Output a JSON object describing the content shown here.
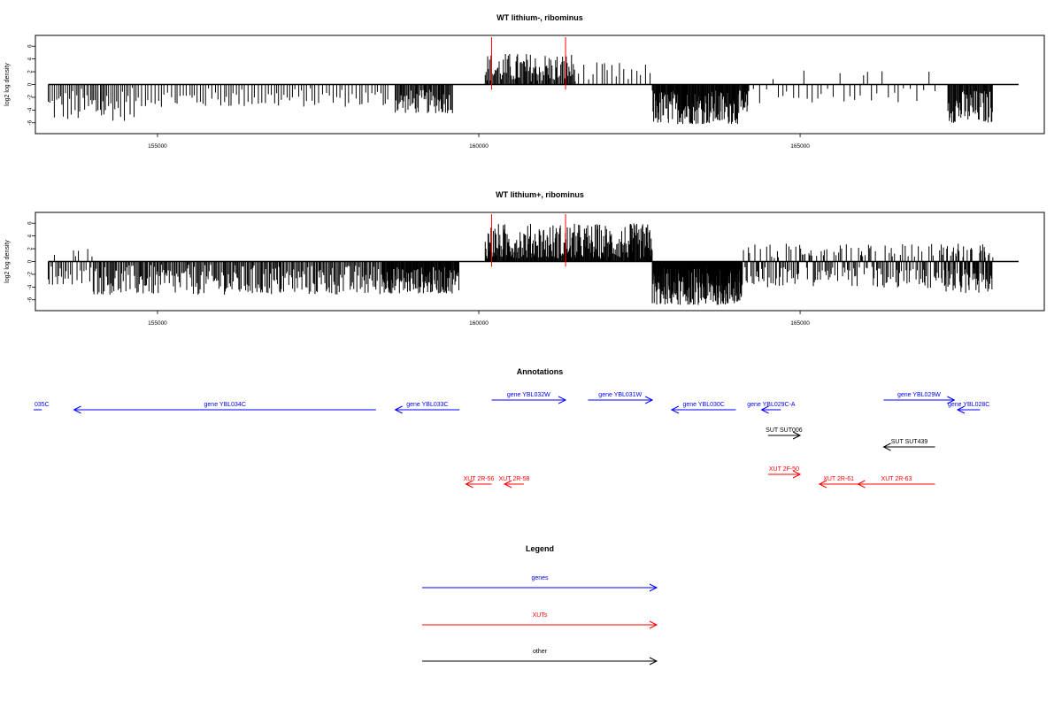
{
  "chart_data": [
    {
      "type": "bar",
      "title": "WT lithium-, ribominus",
      "ylabel": "log2 log density",
      "xlabel": "",
      "xlim": [
        153100,
        168800
      ],
      "ylim": [
        -7,
        7
      ],
      "yticks": [
        6,
        4,
        2,
        0,
        -2,
        -4,
        -6
      ],
      "xticks": [
        155000,
        160000,
        165000
      ],
      "xtick_labels": [
        "155000",
        "160000",
        "165000"
      ],
      "ytick_labels": [
        "6",
        "4",
        "2",
        "0",
        "-2",
        "-4",
        "-6"
      ],
      "baseline_range": [
        153300,
        168400
      ],
      "markers": [
        {
          "x": 160200,
          "color": "#ff0000"
        },
        {
          "x": 161350,
          "color": "#ff0000"
        }
      ],
      "series_color": "#000000",
      "segments": [
        {
          "start": 153300,
          "end": 154700,
          "step": 28,
          "min": -5.7,
          "max": -0.5
        },
        {
          "start": 154700,
          "end": 158600,
          "step": 45,
          "min": -3.5,
          "max": -0.5
        },
        {
          "start": 158700,
          "end": 159600,
          "step": 15,
          "min": -4.5,
          "max": -0.8
        },
        {
          "start": 160100,
          "end": 161500,
          "step": 15,
          "min": 0.5,
          "max": 5.0
        },
        {
          "start": 161500,
          "end": 162700,
          "step": 60,
          "min": 0.5,
          "max": 3.5
        },
        {
          "start": 162700,
          "end": 164200,
          "step": 10,
          "min": -6.2,
          "max": -0.8
        },
        {
          "start": 164200,
          "end": 167200,
          "step": 80,
          "min": -3.0,
          "max": 3.0
        },
        {
          "start": 167300,
          "end": 168000,
          "step": 12,
          "min": -6.0,
          "max": -0.8
        }
      ]
    },
    {
      "type": "bar",
      "title": "WT lithium+, ribominus",
      "ylabel": "log2 log density",
      "xlabel": "",
      "xlim": [
        153100,
        168800
      ],
      "ylim": [
        -7,
        7
      ],
      "yticks": [
        6,
        4,
        2,
        0,
        -2,
        -4,
        -6
      ],
      "xticks": [
        155000,
        160000,
        165000
      ],
      "xtick_labels": [
        "155000",
        "160000",
        "165000"
      ],
      "ytick_labels": [
        "6",
        "4",
        "2",
        "0",
        "-2",
        "-4",
        "-6"
      ],
      "baseline_range": [
        153300,
        168400
      ],
      "markers": [
        {
          "x": 160200,
          "color": "#ff0000"
        },
        {
          "x": 161350,
          "color": "#ff0000"
        }
      ],
      "series_color": "#000000",
      "segments": [
        {
          "start": 153300,
          "end": 154000,
          "step": 25,
          "min": -3.8,
          "max": 2.4
        },
        {
          "start": 154000,
          "end": 158500,
          "step": 18,
          "min": -5.2,
          "max": -0.5
        },
        {
          "start": 158500,
          "end": 159700,
          "step": 10,
          "min": -5.0,
          "max": -0.8
        },
        {
          "start": 160100,
          "end": 162700,
          "step": 10,
          "min": 0.5,
          "max": 6.0
        },
        {
          "start": 162700,
          "end": 164100,
          "step": 6,
          "min": -6.8,
          "max": -0.8
        },
        {
          "start": 164100,
          "end": 167200,
          "step": 18,
          "min": -4.2,
          "max": 2.8
        },
        {
          "start": 167200,
          "end": 168000,
          "step": 10,
          "min": -5.0,
          "max": 2.8
        }
      ]
    }
  ],
  "annotations": {
    "title": "Annotations",
    "items": [
      {
        "label": "035C",
        "start": 153200,
        "end": 152200,
        "row": 0,
        "color": "#0000ff"
      },
      {
        "label": "gene YBL034C",
        "start": 158400,
        "end": 153700,
        "row": 0,
        "color": "#0000ff"
      },
      {
        "label": "gene YBL033C",
        "start": 159700,
        "end": 158700,
        "row": 0,
        "color": "#0000ff"
      },
      {
        "label": "gene YBL032W",
        "start": 160200,
        "end": 161350,
        "row": 1,
        "color": "#0000ff"
      },
      {
        "label": "gene YBL031W",
        "start": 161700,
        "end": 162700,
        "row": 1,
        "color": "#0000ff"
      },
      {
        "label": "gene YBL030C",
        "start": 164000,
        "end": 163000,
        "row": 0,
        "color": "#0000ff"
      },
      {
        "label": "gene YBL029C-A",
        "start": 164700,
        "end": 164400,
        "row": 0,
        "color": "#0000ff"
      },
      {
        "label": "gene YBL029W",
        "start": 166300,
        "end": 167400,
        "row": 1,
        "color": "#0000ff"
      },
      {
        "label": "gene YBL028C",
        "start": 167800,
        "end": 167450,
        "row": 0,
        "color": "#0000ff"
      },
      {
        "label": "SUT SUT006",
        "start": 164500,
        "end": 165000,
        "row": 2,
        "color": "#000000"
      },
      {
        "label": "SUT SUT439",
        "start": 167100,
        "end": 166300,
        "row": 3,
        "color": "#000000"
      },
      {
        "label": "XUT 2F-50",
        "start": 164500,
        "end": 165000,
        "row": 4,
        "color": "#ff0000"
      },
      {
        "label": "XUT 2R-56",
        "start": 160200,
        "end": 159800,
        "row": 5,
        "color": "#ff0000"
      },
      {
        "label": "XUT 2R-58",
        "start": 160700,
        "end": 160400,
        "row": 5,
        "color": "#ff0000"
      },
      {
        "label": "XUT 2R-61",
        "start": 165900,
        "end": 165300,
        "row": 5,
        "color": "#ff0000"
      },
      {
        "label": "XUT 2R-63",
        "start": 167100,
        "end": 165900,
        "row": 5,
        "color": "#ff0000"
      }
    ]
  },
  "legend": {
    "title": "Legend",
    "items": [
      {
        "label": "genes",
        "color": "#0000ff"
      },
      {
        "label": "XUTs",
        "color": "#ff0000"
      },
      {
        "label": "other",
        "color": "#000000"
      }
    ]
  }
}
